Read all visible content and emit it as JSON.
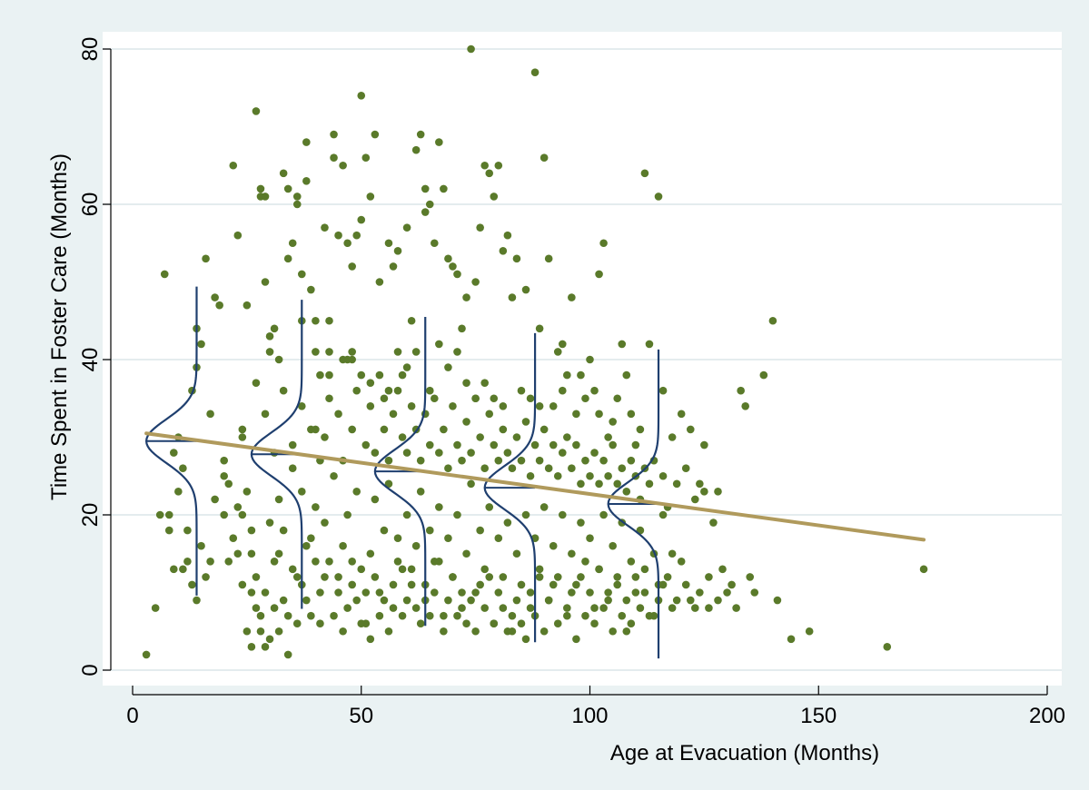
{
  "chart_data": {
    "type": "scatter",
    "title": "",
    "xlabel": "Age at Evacuation (Months)",
    "ylabel": "Time Spent in Foster Care (Months)",
    "xlim": [
      0,
      200
    ],
    "ylim": [
      0,
      80
    ],
    "xticks": [
      0,
      50,
      100,
      150,
      200
    ],
    "yticks": [
      0,
      20,
      40,
      60,
      80
    ],
    "grid": true,
    "colors": {
      "background": "#eaf2f3",
      "plot_area": "#ffffff",
      "points": "#5a7a2a",
      "fit_line": "#b09a5c",
      "density_curves": "#1f3f6f",
      "grid": "#e4ecee"
    },
    "points": [
      [
        3,
        2
      ],
      [
        5,
        8
      ],
      [
        7,
        51
      ],
      [
        8,
        20
      ],
      [
        9,
        28
      ],
      [
        10,
        30
      ],
      [
        11,
        13
      ],
      [
        12,
        14
      ],
      [
        13,
        36
      ],
      [
        14,
        44
      ],
      [
        14,
        39
      ],
      [
        15,
        42
      ],
      [
        16,
        53
      ],
      [
        17,
        33
      ],
      [
        18,
        48
      ],
      [
        19,
        47
      ],
      [
        20,
        25
      ],
      [
        21,
        24
      ],
      [
        22,
        65
      ],
      [
        23,
        56
      ],
      [
        24,
        31
      ],
      [
        24,
        20
      ],
      [
        25,
        47
      ],
      [
        26,
        18
      ],
      [
        26,
        15
      ],
      [
        27,
        72
      ],
      [
        28,
        62
      ],
      [
        28,
        61
      ],
      [
        29,
        61
      ],
      [
        29,
        50
      ],
      [
        29,
        3
      ],
      [
        30,
        43
      ],
      [
        30,
        41
      ],
      [
        31,
        44
      ],
      [
        32,
        40
      ],
      [
        32,
        22
      ],
      [
        33,
        64
      ],
      [
        33,
        18
      ],
      [
        34,
        62
      ],
      [
        34,
        53
      ],
      [
        35,
        55
      ],
      [
        36,
        61
      ],
      [
        36,
        60
      ],
      [
        37,
        51
      ],
      [
        38,
        68
      ],
      [
        38,
        63
      ],
      [
        39,
        49
      ],
      [
        40,
        45
      ],
      [
        40,
        31
      ],
      [
        41,
        27
      ],
      [
        42,
        57
      ],
      [
        43,
        45
      ],
      [
        43,
        38
      ],
      [
        44,
        69
      ],
      [
        44,
        66
      ],
      [
        45,
        56
      ],
      [
        46,
        65
      ],
      [
        47,
        55
      ],
      [
        48,
        52
      ],
      [
        48,
        41
      ],
      [
        49,
        56
      ],
      [
        50,
        74
      ],
      [
        50,
        58
      ],
      [
        51,
        66
      ],
      [
        52,
        61
      ],
      [
        53,
        69
      ],
      [
        54,
        50
      ],
      [
        55,
        35
      ],
      [
        56,
        55
      ],
      [
        57,
        52
      ],
      [
        58,
        54
      ],
      [
        59,
        38
      ],
      [
        60,
        57
      ],
      [
        61,
        45
      ],
      [
        62,
        67
      ],
      [
        63,
        69
      ],
      [
        64,
        59
      ],
      [
        64,
        62
      ],
      [
        65,
        60
      ],
      [
        66,
        55
      ],
      [
        67,
        68
      ],
      [
        68,
        62
      ],
      [
        69,
        53
      ],
      [
        70,
        52
      ],
      [
        71,
        51
      ],
      [
        72,
        44
      ],
      [
        73,
        48
      ],
      [
        74,
        80
      ],
      [
        75,
        50
      ],
      [
        76,
        57
      ],
      [
        77,
        65
      ],
      [
        78,
        64
      ],
      [
        79,
        61
      ],
      [
        80,
        65
      ],
      [
        81,
        54
      ],
      [
        82,
        56
      ],
      [
        83,
        48
      ],
      [
        84,
        53
      ],
      [
        86,
        49
      ],
      [
        88,
        77
      ],
      [
        89,
        44
      ],
      [
        90,
        66
      ],
      [
        91,
        53
      ],
      [
        93,
        41
      ],
      [
        94,
        42
      ],
      [
        95,
        38
      ],
      [
        96,
        48
      ],
      [
        98,
        38
      ],
      [
        100,
        40
      ],
      [
        101,
        36
      ],
      [
        102,
        51
      ],
      [
        103,
        55
      ],
      [
        104,
        30
      ],
      [
        105,
        32
      ],
      [
        107,
        42
      ],
      [
        108,
        38
      ],
      [
        110,
        29
      ],
      [
        112,
        64
      ],
      [
        113,
        42
      ],
      [
        115,
        61
      ],
      [
        116,
        36
      ],
      [
        118,
        30
      ],
      [
        120,
        33
      ],
      [
        122,
        31
      ],
      [
        124,
        24
      ],
      [
        125,
        29
      ],
      [
        127,
        19
      ],
      [
        129,
        13
      ],
      [
        131,
        11
      ],
      [
        133,
        36
      ],
      [
        134,
        34
      ],
      [
        135,
        12
      ],
      [
        136,
        10
      ],
      [
        138,
        38
      ],
      [
        140,
        45
      ],
      [
        141,
        9
      ],
      [
        144,
        4
      ],
      [
        148,
        5
      ],
      [
        165,
        3
      ],
      [
        173,
        13
      ],
      [
        8,
        18
      ],
      [
        9,
        13
      ],
      [
        10,
        23
      ],
      [
        12,
        18
      ],
      [
        15,
        16
      ],
      [
        16,
        12
      ],
      [
        18,
        22
      ],
      [
        20,
        20
      ],
      [
        22,
        17
      ],
      [
        23,
        15
      ],
      [
        25,
        23
      ],
      [
        26,
        10
      ],
      [
        27,
        12
      ],
      [
        28,
        5
      ],
      [
        30,
        19
      ],
      [
        31,
        8
      ],
      [
        32,
        15
      ],
      [
        34,
        2
      ],
      [
        35,
        26
      ],
      [
        36,
        12
      ],
      [
        37,
        23
      ],
      [
        38,
        9
      ],
      [
        39,
        17
      ],
      [
        40,
        21
      ],
      [
        41,
        10
      ],
      [
        42,
        19
      ],
      [
        43,
        14
      ],
      [
        44,
        25
      ],
      [
        45,
        12
      ],
      [
        46,
        16
      ],
      [
        47,
        20
      ],
      [
        48,
        11
      ],
      [
        49,
        23
      ],
      [
        50,
        13
      ],
      [
        51,
        6
      ],
      [
        52,
        15
      ],
      [
        53,
        22
      ],
      [
        54,
        10
      ],
      [
        55,
        18
      ],
      [
        56,
        24
      ],
      [
        57,
        8
      ],
      [
        58,
        17
      ],
      [
        59,
        13
      ],
      [
        60,
        20
      ],
      [
        61,
        11
      ],
      [
        62,
        16
      ],
      [
        63,
        23
      ],
      [
        64,
        9
      ],
      [
        65,
        18
      ],
      [
        66,
        14
      ],
      [
        67,
        21
      ],
      [
        68,
        7
      ],
      [
        69,
        17
      ],
      [
        70,
        12
      ],
      [
        71,
        20
      ],
      [
        72,
        8
      ],
      [
        73,
        15
      ],
      [
        74,
        24
      ],
      [
        75,
        10
      ],
      [
        76,
        18
      ],
      [
        77,
        13
      ],
      [
        78,
        21
      ],
      [
        79,
        6
      ],
      [
        80,
        17
      ],
      [
        81,
        12
      ],
      [
        82,
        19
      ],
      [
        83,
        5
      ],
      [
        84,
        15
      ],
      [
        85,
        11
      ],
      [
        86,
        20
      ],
      [
        87,
        8
      ],
      [
        88,
        17
      ],
      [
        89,
        13
      ],
      [
        90,
        21
      ],
      [
        91,
        9
      ],
      [
        92,
        16
      ],
      [
        93,
        12
      ],
      [
        94,
        20
      ],
      [
        95,
        7
      ],
      [
        96,
        15
      ],
      [
        97,
        11
      ],
      [
        98,
        19
      ],
      [
        99,
        14
      ],
      [
        100,
        17
      ],
      [
        101,
        8
      ],
      [
        102,
        13
      ],
      [
        103,
        20
      ],
      [
        104,
        10
      ],
      [
        105,
        16
      ],
      [
        106,
        12
      ],
      [
        107,
        19
      ],
      [
        108,
        5
      ],
      [
        109,
        14
      ],
      [
        110,
        10
      ],
      [
        111,
        18
      ],
      [
        112,
        13
      ],
      [
        113,
        7
      ],
      [
        114,
        15
      ],
      [
        115,
        11
      ],
      [
        116,
        20
      ],
      [
        117,
        12
      ],
      [
        118,
        15
      ],
      [
        119,
        9
      ],
      [
        120,
        14
      ],
      [
        121,
        11
      ],
      [
        123,
        8
      ],
      [
        126,
        12
      ],
      [
        128,
        9
      ],
      [
        130,
        10
      ],
      [
        132,
        8
      ],
      [
        20,
        27
      ],
      [
        24,
        30
      ],
      [
        27,
        37
      ],
      [
        29,
        33
      ],
      [
        31,
        28
      ],
      [
        33,
        36
      ],
      [
        35,
        29
      ],
      [
        37,
        34
      ],
      [
        39,
        31
      ],
      [
        41,
        38
      ],
      [
        42,
        30
      ],
      [
        43,
        35
      ],
      [
        45,
        33
      ],
      [
        46,
        27
      ],
      [
        47,
        40
      ],
      [
        48,
        31
      ],
      [
        49,
        36
      ],
      [
        51,
        29
      ],
      [
        52,
        34
      ],
      [
        53,
        28
      ],
      [
        54,
        38
      ],
      [
        55,
        31
      ],
      [
        56,
        27
      ],
      [
        57,
        33
      ],
      [
        58,
        36
      ],
      [
        59,
        30
      ],
      [
        60,
        28
      ],
      [
        61,
        34
      ],
      [
        62,
        31
      ],
      [
        63,
        27
      ],
      [
        64,
        33
      ],
      [
        65,
        29
      ],
      [
        66,
        35
      ],
      [
        67,
        28
      ],
      [
        68,
        31
      ],
      [
        69,
        26
      ],
      [
        70,
        34
      ],
      [
        71,
        29
      ],
      [
        72,
        27
      ],
      [
        73,
        32
      ],
      [
        74,
        28
      ],
      [
        75,
        35
      ],
      [
        76,
        30
      ],
      [
        77,
        26
      ],
      [
        78,
        33
      ],
      [
        79,
        29
      ],
      [
        80,
        27
      ],
      [
        81,
        31
      ],
      [
        82,
        28
      ],
      [
        83,
        26
      ],
      [
        84,
        30
      ],
      [
        85,
        27
      ],
      [
        86,
        32
      ],
      [
        87,
        25
      ],
      [
        88,
        29
      ],
      [
        89,
        27
      ],
      [
        90,
        31
      ],
      [
        91,
        26
      ],
      [
        92,
        29
      ],
      [
        93,
        25
      ],
      [
        94,
        28
      ],
      [
        95,
        30
      ],
      [
        96,
        26
      ],
      [
        97,
        29
      ],
      [
        98,
        24
      ],
      [
        99,
        27
      ],
      [
        100,
        25
      ],
      [
        101,
        28
      ],
      [
        102,
        24
      ],
      [
        103,
        27
      ],
      [
        104,
        25
      ],
      [
        105,
        29
      ],
      [
        106,
        24
      ],
      [
        107,
        26
      ],
      [
        108,
        23
      ],
      [
        109,
        27
      ],
      [
        110,
        25
      ],
      [
        111,
        22
      ],
      [
        112,
        26
      ],
      [
        113,
        24
      ],
      [
        114,
        27
      ],
      [
        116,
        25
      ],
      [
        117,
        21
      ],
      [
        119,
        24
      ],
      [
        121,
        26
      ],
      [
        123,
        22
      ],
      [
        125,
        23
      ],
      [
        128,
        23
      ],
      [
        6,
        20
      ],
      [
        11,
        26
      ],
      [
        13,
        11
      ],
      [
        14,
        9
      ],
      [
        17,
        14
      ],
      [
        21,
        14
      ],
      [
        23,
        21
      ],
      [
        24,
        11
      ],
      [
        25,
        5
      ],
      [
        26,
        3
      ],
      [
        27,
        8
      ],
      [
        28,
        7
      ],
      [
        29,
        10
      ],
      [
        30,
        4
      ],
      [
        31,
        14
      ],
      [
        32,
        5
      ],
      [
        33,
        9
      ],
      [
        34,
        7
      ],
      [
        35,
        13
      ],
      [
        36,
        6
      ],
      [
        37,
        11
      ],
      [
        38,
        16
      ],
      [
        39,
        7
      ],
      [
        40,
        14
      ],
      [
        41,
        6
      ],
      [
        42,
        12
      ],
      [
        44,
        7
      ],
      [
        45,
        10
      ],
      [
        46,
        5
      ],
      [
        47,
        8
      ],
      [
        48,
        14
      ],
      [
        49,
        9
      ],
      [
        50,
        6
      ],
      [
        51,
        10
      ],
      [
        52,
        4
      ],
      [
        53,
        12
      ],
      [
        54,
        7
      ],
      [
        55,
        9
      ],
      [
        56,
        5
      ],
      [
        57,
        11
      ],
      [
        58,
        14
      ],
      [
        59,
        7
      ],
      [
        60,
        9
      ],
      [
        61,
        13
      ],
      [
        62,
        8
      ],
      [
        63,
        6
      ],
      [
        64,
        11
      ],
      [
        65,
        7
      ],
      [
        66,
        10
      ],
      [
        67,
        14
      ],
      [
        68,
        5
      ],
      [
        69,
        9
      ],
      [
        70,
        12
      ],
      [
        71,
        7
      ],
      [
        72,
        10
      ],
      [
        73,
        6
      ],
      [
        74,
        9
      ],
      [
        75,
        5
      ],
      [
        76,
        11
      ],
      [
        77,
        8
      ],
      [
        78,
        12
      ],
      [
        79,
        6
      ],
      [
        80,
        10
      ],
      [
        81,
        8
      ],
      [
        82,
        5
      ],
      [
        83,
        7
      ],
      [
        84,
        9
      ],
      [
        85,
        6
      ],
      [
        86,
        4
      ],
      [
        87,
        10
      ],
      [
        88,
        7
      ],
      [
        89,
        12
      ],
      [
        90,
        5
      ],
      [
        91,
        9
      ],
      [
        92,
        11
      ],
      [
        93,
        6
      ],
      [
        95,
        8
      ],
      [
        96,
        10
      ],
      [
        97,
        4
      ],
      [
        98,
        12
      ],
      [
        99,
        7
      ],
      [
        100,
        10
      ],
      [
        101,
        6
      ],
      [
        102,
        13
      ],
      [
        103,
        8
      ],
      [
        104,
        9
      ],
      [
        105,
        5
      ],
      [
        106,
        11
      ],
      [
        107,
        7
      ],
      [
        108,
        9
      ],
      [
        109,
        6
      ],
      [
        110,
        12
      ],
      [
        111,
        8
      ],
      [
        112,
        10
      ],
      [
        114,
        7
      ],
      [
        115,
        9
      ],
      [
        116,
        11
      ],
      [
        118,
        8
      ],
      [
        122,
        9
      ],
      [
        124,
        10
      ],
      [
        126,
        8
      ],
      [
        37,
        45
      ],
      [
        40,
        41
      ],
      [
        43,
        41
      ],
      [
        46,
        40
      ],
      [
        48,
        40
      ],
      [
        50,
        38
      ],
      [
        52,
        37
      ],
      [
        56,
        36
      ],
      [
        58,
        41
      ],
      [
        60,
        39
      ],
      [
        62,
        41
      ],
      [
        65,
        36
      ],
      [
        67,
        42
      ],
      [
        69,
        39
      ],
      [
        71,
        41
      ],
      [
        73,
        37
      ],
      [
        75,
        35
      ],
      [
        77,
        37
      ],
      [
        79,
        35
      ],
      [
        81,
        34
      ],
      [
        85,
        36
      ],
      [
        87,
        35
      ],
      [
        89,
        34
      ],
      [
        92,
        34
      ],
      [
        94,
        36
      ],
      [
        97,
        33
      ],
      [
        99,
        35
      ],
      [
        102,
        33
      ],
      [
        106,
        35
      ],
      [
        109,
        33
      ],
      [
        111,
        31
      ]
    ],
    "fit_line": {
      "x": [
        3,
        173
      ],
      "y": [
        30.5,
        16.8
      ]
    },
    "conditional_densities": [
      {
        "x": 14,
        "mean": 29.5,
        "sd": 2.8
      },
      {
        "x": 37,
        "mean": 27.8,
        "sd": 2.8
      },
      {
        "x": 64,
        "mean": 25.6,
        "sd": 2.8
      },
      {
        "x": 88,
        "mean": 23.5,
        "sd": 2.8
      },
      {
        "x": 115,
        "mean": 21.4,
        "sd": 2.8
      }
    ]
  }
}
